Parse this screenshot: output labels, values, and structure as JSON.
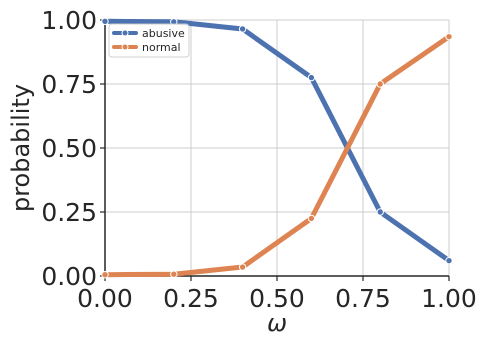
{
  "chart_data": {
    "type": "line",
    "title": "",
    "xlabel": "ω",
    "ylabel": "probability",
    "xlim": [
      0.0,
      1.0
    ],
    "ylim": [
      0.0,
      1.0
    ],
    "grid": true,
    "legend_position": "top-left",
    "x": [
      0.0,
      0.2,
      0.4,
      0.6,
      0.8,
      1.0
    ],
    "x_ticks": [
      "0.00",
      "0.25",
      "0.50",
      "0.75",
      "1.00"
    ],
    "y_ticks": [
      "0.00",
      "0.25",
      "0.50",
      "0.75",
      "1.00"
    ],
    "x_tick_values": [
      0.0,
      0.25,
      0.5,
      0.75,
      1.0
    ],
    "y_tick_values": [
      0.0,
      0.25,
      0.5,
      0.75,
      1.0
    ],
    "series": [
      {
        "name": "abusive",
        "color": "#4c72b0",
        "values": [
          0.995,
          0.993,
          0.965,
          0.775,
          0.25,
          0.06
        ]
      },
      {
        "name": "normal",
        "color": "#dd8452",
        "values": [
          0.005,
          0.007,
          0.035,
          0.225,
          0.75,
          0.935
        ]
      }
    ]
  }
}
